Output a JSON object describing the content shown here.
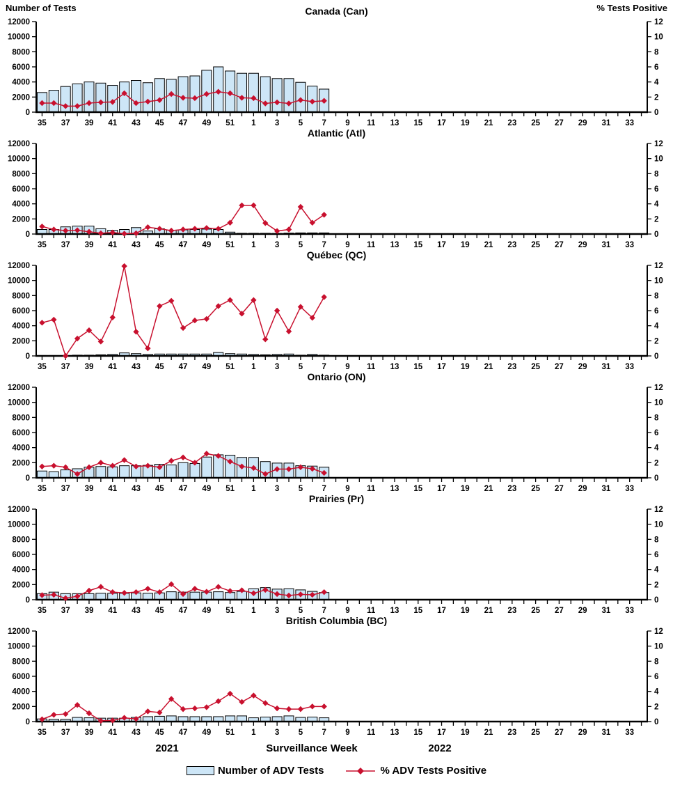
{
  "header": {
    "left_axis_title": "Number of Tests",
    "right_axis_title": "% Tests Positive"
  },
  "footer": {
    "year_left": "2021",
    "x_axis_title": "Surveillance Week",
    "year_right": "2022"
  },
  "legend": {
    "bar_label": "Number of ADV Tests",
    "line_label": "% ADV Tests Positive"
  },
  "colors": {
    "bar_fill": "#CDE6F7",
    "bar_edge": "#000000",
    "line": "#C8102E",
    "marker": "#C8102E",
    "axis": "#000000",
    "background": "#FFFFFF"
  },
  "chart_data": {
    "type": "bar",
    "subtype": "multi-panel bar + line (dual axis)",
    "x_axis": {
      "title": "Surveillance Week",
      "year_segments": [
        "2021",
        "2022"
      ],
      "weeks": [
        35,
        36,
        37,
        38,
        39,
        40,
        41,
        42,
        43,
        44,
        45,
        46,
        47,
        48,
        49,
        50,
        51,
        52,
        1,
        2,
        3,
        4,
        5,
        6,
        7,
        8,
        9,
        10,
        11,
        12,
        13,
        14,
        15,
        16,
        17,
        18,
        19,
        20,
        21,
        22,
        23,
        24,
        25,
        26,
        27,
        28,
        29,
        30,
        31,
        32,
        33,
        34
      ],
      "label_every": 2
    },
    "left_axis": {
      "title": "Number of Tests",
      "lim": [
        0,
        12000
      ],
      "ticks": [
        0,
        2000,
        4000,
        6000,
        8000,
        10000,
        12000
      ]
    },
    "right_axis": {
      "title": "% Tests Positive",
      "lim": [
        0,
        12
      ],
      "ticks": [
        0,
        2,
        4,
        6,
        8,
        10,
        12
      ]
    },
    "series_names": [
      "Number of ADV Tests",
      "% ADV Tests Positive"
    ],
    "data_through_week": 7,
    "panels": [
      {
        "title": "Canada (Can)",
        "tests": [
          2600,
          2900,
          3400,
          3750,
          4000,
          3850,
          3550,
          4000,
          4200,
          3900,
          4450,
          4350,
          4700,
          4800,
          5550,
          6000,
          5450,
          5150,
          5150,
          4700,
          4450,
          4450,
          3950,
          3450,
          3050
        ],
        "pct_positive": [
          1.2,
          1.2,
          0.8,
          0.8,
          1.2,
          1.3,
          1.35,
          2.5,
          1.2,
          1.4,
          1.6,
          2.4,
          1.9,
          1.85,
          2.4,
          2.7,
          2.5,
          1.9,
          1.85,
          1.15,
          1.3,
          1.15,
          1.6,
          1.4,
          1.5
        ]
      },
      {
        "title": "Atlantic (Atl)",
        "tests": [
          600,
          600,
          950,
          1050,
          1050,
          700,
          500,
          600,
          850,
          400,
          700,
          500,
          550,
          600,
          650,
          600,
          250,
          100,
          100,
          100,
          80,
          120,
          150,
          150,
          150
        ],
        "pct_positive": [
          1.0,
          0.6,
          0.45,
          0.5,
          0.3,
          0.1,
          0.2,
          0.05,
          0.1,
          0.9,
          0.7,
          0.45,
          0.6,
          0.7,
          0.8,
          0.7,
          1.5,
          3.8,
          3.8,
          1.45,
          0.4,
          0.6,
          3.6,
          1.5,
          2.55
        ]
      },
      {
        "title": "Québec (QC)",
        "tests": [
          50,
          50,
          50,
          100,
          100,
          150,
          200,
          400,
          300,
          200,
          250,
          250,
          250,
          250,
          250,
          450,
          300,
          250,
          200,
          150,
          200,
          250,
          100,
          200,
          100
        ],
        "pct_positive": [
          4.4,
          4.8,
          0.0,
          2.3,
          3.4,
          1.9,
          5.1,
          11.9,
          3.2,
          1.0,
          6.6,
          7.3,
          3.7,
          4.7,
          4.9,
          6.6,
          7.4,
          5.6,
          7.4,
          2.2,
          6.0,
          3.25,
          6.5,
          5.05,
          7.8
        ]
      },
      {
        "title": "Ontario (ON)",
        "tests": [
          900,
          800,
          1050,
          1200,
          1400,
          1500,
          1450,
          1600,
          1600,
          1650,
          1800,
          1700,
          2000,
          1900,
          2750,
          3050,
          3000,
          2700,
          2700,
          2150,
          1950,
          1950,
          1600,
          1550,
          1400
        ],
        "pct_positive": [
          1.5,
          1.6,
          1.4,
          0.5,
          1.4,
          2.0,
          1.6,
          2.35,
          1.5,
          1.6,
          1.4,
          2.25,
          2.7,
          2.0,
          3.2,
          2.9,
          2.15,
          1.5,
          1.3,
          0.5,
          1.15,
          1.15,
          1.4,
          1.2,
          0.65
        ]
      },
      {
        "title": "Prairies (Pr)",
        "tests": [
          800,
          1000,
          800,
          800,
          800,
          850,
          850,
          850,
          900,
          850,
          900,
          1050,
          1000,
          1000,
          1000,
          1050,
          950,
          1100,
          1450,
          1600,
          1400,
          1450,
          1300,
          1100,
          950
        ],
        "pct_positive": [
          0.6,
          0.65,
          0.2,
          0.45,
          1.2,
          1.7,
          1.0,
          0.9,
          1.0,
          1.45,
          1.0,
          2.05,
          0.75,
          1.45,
          1.05,
          1.7,
          1.15,
          1.25,
          0.85,
          1.3,
          0.75,
          0.55,
          0.7,
          0.65,
          1.0
        ]
      },
      {
        "title": "British Columbia (BC)",
        "tests": [
          350,
          300,
          300,
          550,
          500,
          450,
          450,
          450,
          550,
          650,
          700,
          750,
          650,
          650,
          650,
          650,
          750,
          750,
          500,
          600,
          650,
          750,
          550,
          600,
          500
        ],
        "pct_positive": [
          0.3,
          0.9,
          1.0,
          2.2,
          1.1,
          0.1,
          0.15,
          0.5,
          0.35,
          1.35,
          1.2,
          3.0,
          1.65,
          1.75,
          1.9,
          2.7,
          3.7,
          2.6,
          3.45,
          2.45,
          1.75,
          1.65,
          1.65,
          2.0,
          2.0
        ]
      }
    ]
  }
}
